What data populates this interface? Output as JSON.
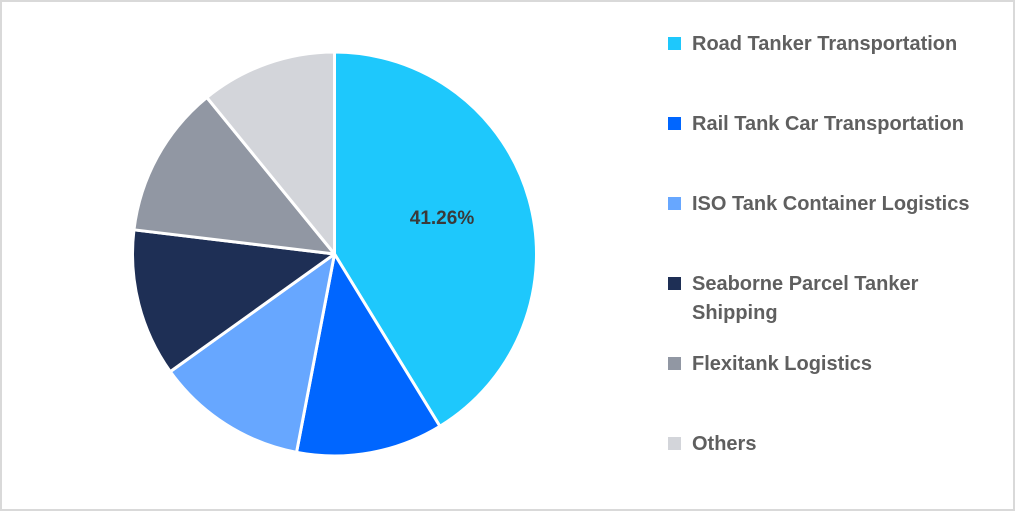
{
  "chart_data": {
    "type": "pie",
    "title": "",
    "start_angle_deg": 0,
    "direction": "clockwise",
    "slices": [
      {
        "label": "Road Tanker Transportation",
        "value": 41.26,
        "color": "#1ec8fc",
        "data_label": "41.26%"
      },
      {
        "label": "Rail Tank Car Transportation",
        "value": 11.75,
        "color": "#0066ff",
        "data_label": ""
      },
      {
        "label": "ISO Tank Container Logistics",
        "value": 12.1,
        "color": "#67a7ff",
        "data_label": ""
      },
      {
        "label": "Seaborne Parcel Tanker Shipping",
        "value": 11.8,
        "color": "#1e2f55",
        "data_label": ""
      },
      {
        "label": "Flexitank Logistics",
        "value": 12.2,
        "color": "#9197a3",
        "data_label": ""
      },
      {
        "label": "Others",
        "value": 10.89,
        "color": "#d3d5da",
        "data_label": ""
      }
    ],
    "legend_position": "right"
  },
  "legend": {
    "items": [
      {
        "label": "Road Tanker Transportation",
        "color": "#1ec8fc"
      },
      {
        "label": "Rail Tank Car Transportation",
        "color": "#0066ff"
      },
      {
        "label": "ISO Tank Container Logistics",
        "color": "#67a7ff"
      },
      {
        "label": "Seaborne Parcel Tanker Shipping",
        "color": "#1e2f55"
      },
      {
        "label": "Flexitank Logistics",
        "color": "#9197a3"
      },
      {
        "label": "Others",
        "color": "#d3d5da"
      }
    ]
  },
  "labels": {
    "main_slice": "41.26%"
  }
}
